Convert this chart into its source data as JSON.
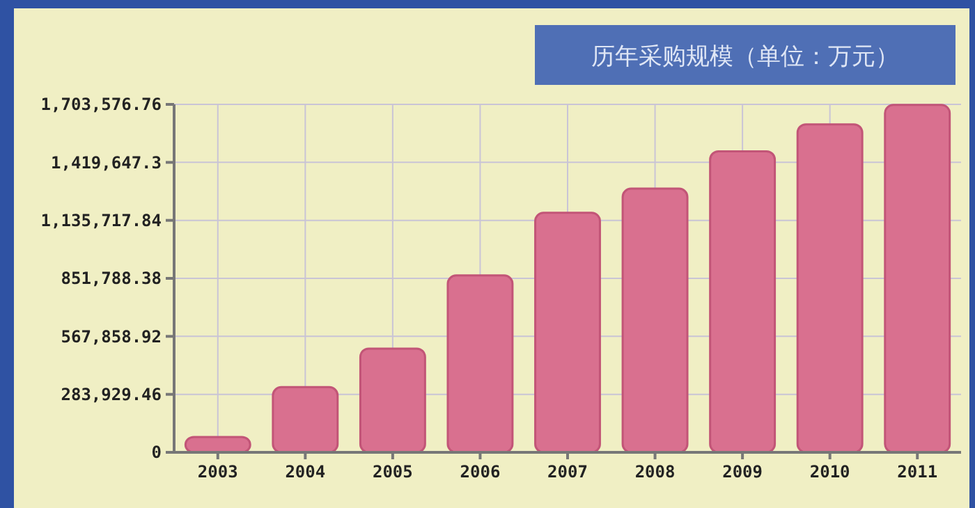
{
  "chart_data": {
    "type": "bar",
    "title": "历年采购规模（单位：万元）",
    "categories": [
      "2003",
      "2004",
      "2005",
      "2006",
      "2007",
      "2008",
      "2009",
      "2010",
      "2011"
    ],
    "values": [
      75000,
      319000,
      508000,
      866000,
      1173000,
      1291000,
      1474000,
      1606000,
      1701000
    ],
    "color": "#d9708f",
    "ylim": [
      0,
      1703576.76
    ],
    "yticks": [
      0,
      {
        "value": 283929.46,
        "label": "283,929.46"
      },
      {
        "value": 567858.92,
        "label": "567,858.92"
      },
      {
        "value": 851788.38,
        "label": "851,788.38"
      },
      {
        "value": 1135717.84,
        "label": "1,135,717.84"
      },
      {
        "value": 1419647.3,
        "label": "1,419,647.3"
      },
      {
        "value": 1703576.76,
        "label": "1,703,576.76"
      }
    ],
    "grid": true
  }
}
